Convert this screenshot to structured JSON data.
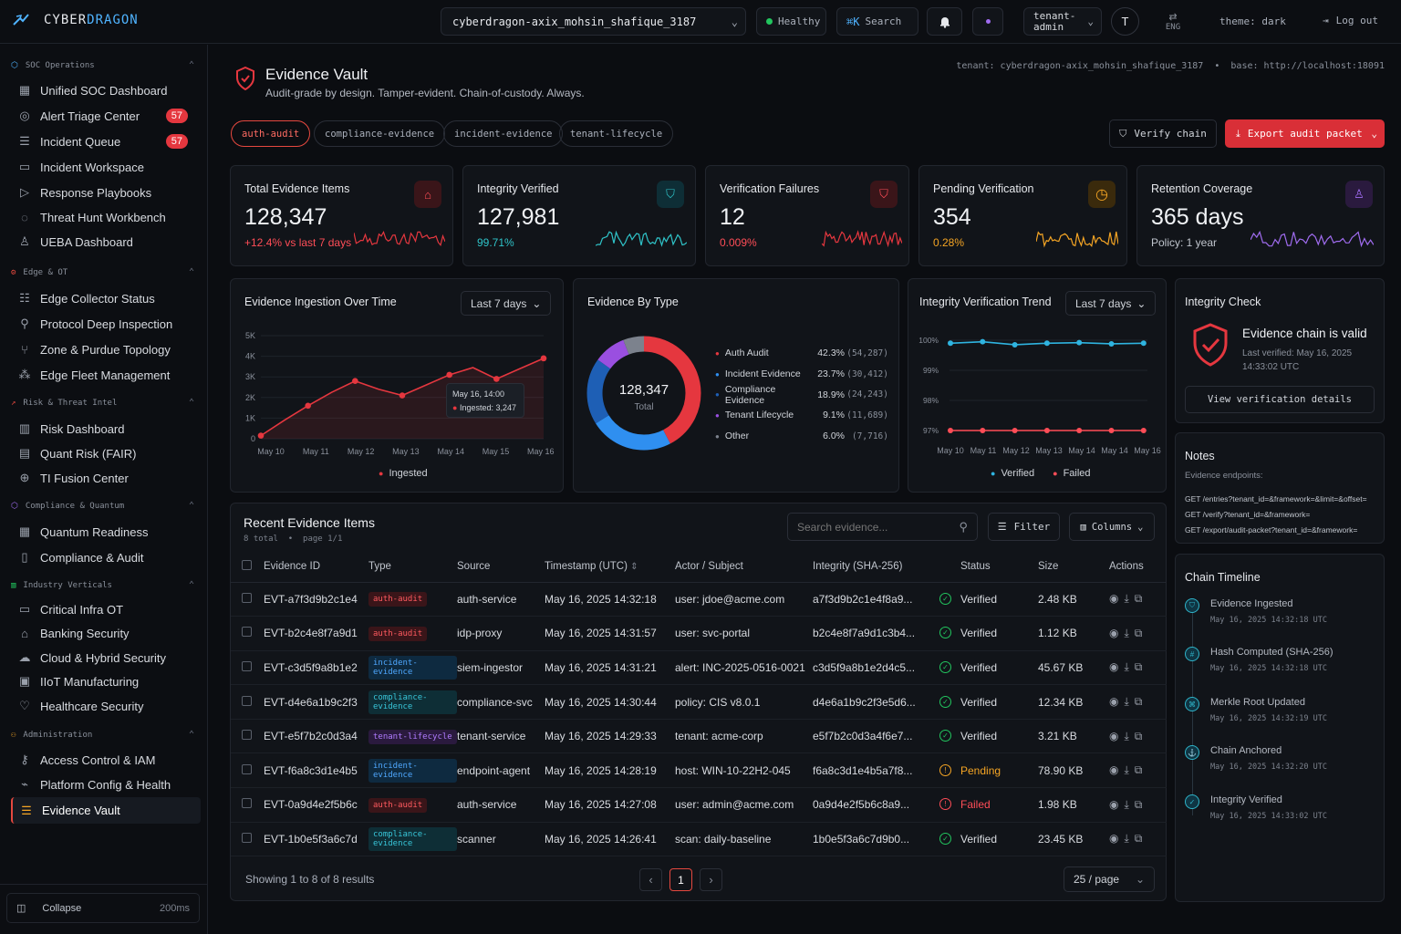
{
  "brand": {
    "prefix": "CYBER",
    "suffix": "DRAGON"
  },
  "topbar": {
    "tenant_select": "cyberdragon-axix_mohsin_shafique_3187",
    "health": "Healthy",
    "search_shortcut": "⌘K",
    "search_label": "Search",
    "role": "tenant-\nadmin",
    "avatar": "T",
    "lang": "ENG",
    "theme": "theme: dark",
    "logout": "Log out"
  },
  "sidebar": {
    "sections": [
      {
        "label": "SOC Operations",
        "items": [
          {
            "label": "Unified SOC Dashboard"
          },
          {
            "label": "Alert Triage Center",
            "badge": "57"
          },
          {
            "label": "Incident Queue",
            "badge": "57"
          },
          {
            "label": "Incident Workspace"
          },
          {
            "label": "Response Playbooks"
          },
          {
            "label": "Threat Hunt Workbench"
          },
          {
            "label": "UEBA Dashboard"
          }
        ]
      },
      {
        "label": "Edge & OT",
        "items": [
          {
            "label": "Edge Collector Status"
          },
          {
            "label": "Protocol Deep Inspection"
          },
          {
            "label": "Zone & Purdue Topology"
          },
          {
            "label": "Edge Fleet Management"
          }
        ]
      },
      {
        "label": "Risk & Threat Intel",
        "items": [
          {
            "label": "Risk Dashboard"
          },
          {
            "label": "Quant Risk (FAIR)"
          },
          {
            "label": "TI Fusion Center"
          }
        ]
      },
      {
        "label": "Compliance & Quantum",
        "items": [
          {
            "label": "Quantum Readiness"
          },
          {
            "label": "Compliance & Audit"
          }
        ]
      },
      {
        "label": "Industry Verticals",
        "items": [
          {
            "label": "Critical Infra OT"
          },
          {
            "label": "Banking Security"
          },
          {
            "label": "Cloud & Hybrid Security"
          },
          {
            "label": "IIoT Manufacturing"
          },
          {
            "label": "Healthcare Security"
          }
        ]
      },
      {
        "label": "Administration",
        "items": [
          {
            "label": "Access Control & IAM"
          },
          {
            "label": "Platform Config & Health"
          },
          {
            "label": "Evidence Vault"
          }
        ]
      }
    ],
    "collapse": "Collapse",
    "latency": "200ms"
  },
  "page": {
    "title": "Evidence Vault",
    "subtitle": "Audit-grade by design. Tamper-evident. Chain-of-custody. Always.",
    "meta": "tenant: cyberdragon-axix_mohsin_shafique_3187  •  base: http://localhost:18091",
    "chips": [
      "auth-audit",
      "compliance-evidence",
      "incident-evidence",
      "tenant-lifecycle"
    ],
    "verify_btn": "Verify chain",
    "export_btn": "Export audit packet"
  },
  "kpis": [
    {
      "title": "Total Evidence Items",
      "value": "128,347",
      "sub": "+12.4% vs last 7 days",
      "color": "#e5373f"
    },
    {
      "title": "Integrity Verified",
      "value": "127,981",
      "sub": "99.71%",
      "color": "#2fc4c9"
    },
    {
      "title": "Verification Failures",
      "value": "12",
      "sub": "0.009%",
      "color": "#e5373f"
    },
    {
      "title": "Pending Verification",
      "value": "354",
      "sub": "0.28%",
      "color": "#f5a524"
    },
    {
      "title": "Retention Coverage",
      "value": "365 days",
      "sub": "Policy: 1 year",
      "color": "#a06cf0"
    }
  ],
  "ingestion": {
    "title": "Evidence Ingestion Over Time",
    "range": "Last 7 days",
    "legend": "Ingested",
    "tooltip_date": "May 16, 14:00",
    "tooltip_value": "Ingested: 3,247",
    "y_ticks": [
      "5K",
      "4K",
      "3K",
      "2K",
      "1K",
      "0"
    ],
    "x_labels": [
      "May 10",
      "May 11",
      "May 12",
      "May 13",
      "May 14",
      "May 15",
      "May 16"
    ]
  },
  "by_type": {
    "title": "Evidence By Type",
    "total": "128,347",
    "total_label": "Total",
    "rows": [
      {
        "name": "Auth Audit",
        "pct": "42.3%",
        "count": "(54,287)",
        "color": "#e5373f"
      },
      {
        "name": "Incident Evidence",
        "pct": "23.7%",
        "count": "(30,412)",
        "color": "#2f8ff0"
      },
      {
        "name": "Compliance Evidence",
        "pct": "18.9%",
        "count": "(24,243)",
        "color": "#1e5fb5"
      },
      {
        "name": "Tenant Lifecycle",
        "pct": "9.1%",
        "count": "(11,689)",
        "color": "#9a4fe0"
      },
      {
        "name": "Other",
        "pct": "6.0%",
        "count": "(7,716)",
        "color": "#7c828d"
      }
    ]
  },
  "trend": {
    "title": "Integrity Verification Trend",
    "range": "Last 7 days",
    "y_ticks": [
      "100%",
      "99%",
      "98%",
      "97%"
    ],
    "x_labels": [
      "May 10",
      "May 11",
      "May 12",
      "May 13",
      "May 14",
      "May 14",
      "May 16"
    ],
    "legend_verified": "Verified",
    "legend_failed": "Failed"
  },
  "chart_data": [
    {
      "type": "line",
      "title": "Evidence Ingestion Over Time",
      "x": [
        "May 10",
        "",
        "May 11",
        "",
        "May 12",
        "",
        "May 13",
        "",
        "May 14",
        "",
        "May 15",
        "",
        "May 16"
      ],
      "series": [
        {
          "name": "Ingested",
          "values": [
            150,
            900,
            1600,
            2250,
            2800,
            2400,
            2100,
            2600,
            3100,
            3450,
            2900,
            3400,
            3900
          ]
        }
      ],
      "ylim": [
        0,
        5000
      ]
    },
    {
      "type": "pie",
      "title": "Evidence By Type",
      "categories": [
        "Auth Audit",
        "Incident Evidence",
        "Compliance Evidence",
        "Tenant Lifecycle",
        "Other"
      ],
      "values": [
        42.3,
        23.7,
        18.9,
        9.1,
        6.0
      ]
    },
    {
      "type": "line",
      "title": "Integrity Verification Trend",
      "x": [
        "May 10",
        "May 11",
        "May 12",
        "May 13",
        "May 14",
        "May 14",
        "May 16"
      ],
      "series": [
        {
          "name": "Verified",
          "values": [
            99.9,
            99.95,
            99.85,
            99.9,
            99.92,
            99.88,
            99.9
          ]
        },
        {
          "name": "Failed",
          "values": [
            97.0,
            97.0,
            97.0,
            97.0,
            97.0,
            97.0,
            97.0
          ]
        }
      ],
      "ylim": [
        96.8,
        100.2
      ]
    }
  ],
  "integrity": {
    "title": "Integrity Check",
    "status": "Evidence chain is valid",
    "last": "Last verified: May 16, 2025\n14:33:02 UTC",
    "btn": "View verification details"
  },
  "notes": {
    "title": "Notes",
    "label": "Evidence endpoints:",
    "lines": [
      "GET /entries?tenant_id=&framework=&limit=&offset=",
      "GET /verify?tenant_id=&framework=",
      "GET /export/audit-packet?tenant_id=&framework="
    ]
  },
  "timeline": {
    "title": "Chain Timeline",
    "items": [
      {
        "label": "Evidence Ingested",
        "ts": "May 16, 2025 14:32:18 UTC"
      },
      {
        "label": "Hash Computed (SHA-256)",
        "ts": "May 16, 2025 14:32:18 UTC"
      },
      {
        "label": "Merkle Root Updated",
        "ts": "May 16, 2025 14:32:19 UTC"
      },
      {
        "label": "Chain Anchored",
        "ts": "May 16, 2025 14:32:20 UTC"
      },
      {
        "label": "Integrity Verified",
        "ts": "May 16, 2025 14:33:02 UTC"
      }
    ]
  },
  "table": {
    "title": "Recent Evidence Items",
    "meta": "8 total  •  page 1/1",
    "search_placeholder": "Search evidence...",
    "filter": "Filter",
    "columns_btn": "Columns",
    "headers": [
      "Evidence ID",
      "Type",
      "Source",
      "Timestamp (UTC)",
      "Actor / Subject",
      "Integrity (SHA-256)",
      "Status",
      "Size",
      "Actions"
    ],
    "rows": [
      {
        "id": "EVT-a7f3d9b2c1e4",
        "type": "auth-audit",
        "source": "auth-service",
        "ts": "May 16, 2025 14:32:18",
        "actor": "user: jdoe@acme.com",
        "hash": "a7f3d9b2c1e4f8a9...",
        "status": "Verified",
        "size": "2.48 KB"
      },
      {
        "id": "EVT-b2c4e8f7a9d1",
        "type": "auth-audit",
        "source": "idp-proxy",
        "ts": "May 16, 2025 14:31:57",
        "actor": "user: svc-portal",
        "hash": "b2c4e8f7a9d1c3b4...",
        "status": "Verified",
        "size": "1.12 KB"
      },
      {
        "id": "EVT-c3d5f9a8b1e2",
        "type": "incident-evidence",
        "source": "siem-ingestor",
        "ts": "May 16, 2025 14:31:21",
        "actor": "alert: INC-2025-0516-0021",
        "hash": "c3d5f9a8b1e2d4c5...",
        "status": "Verified",
        "size": "45.67 KB"
      },
      {
        "id": "EVT-d4e6a1b9c2f3",
        "type": "compliance-evidence",
        "source": "compliance-svc",
        "ts": "May 16, 2025 14:30:44",
        "actor": "policy: CIS v8.0.1",
        "hash": "d4e6a1b9c2f3e5d6...",
        "status": "Verified",
        "size": "12.34 KB"
      },
      {
        "id": "EVT-e5f7b2c0d3a4",
        "type": "tenant-lifecycle",
        "source": "tenant-service",
        "ts": "May 16, 2025 14:29:33",
        "actor": "tenant: acme-corp",
        "hash": "e5f7b2c0d3a4f6e7...",
        "status": "Verified",
        "size": "3.21 KB"
      },
      {
        "id": "EVT-f6a8c3d1e4b5",
        "type": "incident-evidence",
        "source": "endpoint-agent",
        "ts": "May 16, 2025 14:28:19",
        "actor": "host: WIN-10-22H2-045",
        "hash": "f6a8c3d1e4b5a7f8...",
        "status": "Pending",
        "size": "78.90 KB"
      },
      {
        "id": "EVT-0a9d4e2f5b6c",
        "type": "auth-audit",
        "source": "auth-service",
        "ts": "May 16, 2025 14:27:08",
        "actor": "user: admin@acme.com",
        "hash": "0a9d4e2f5b6c8a9...",
        "status": "Failed",
        "size": "1.98 KB"
      },
      {
        "id": "EVT-1b0e5f3a6c7d",
        "type": "compliance-evidence",
        "source": "scanner",
        "ts": "May 16, 2025 14:26:41",
        "actor": "scan: daily-baseline",
        "hash": "1b0e5f3a6c7d9b0...",
        "status": "Verified",
        "size": "23.45 KB"
      }
    ],
    "footer": "Showing 1 to 8 of 8 results",
    "page": "1",
    "per_page": "25 / page"
  }
}
